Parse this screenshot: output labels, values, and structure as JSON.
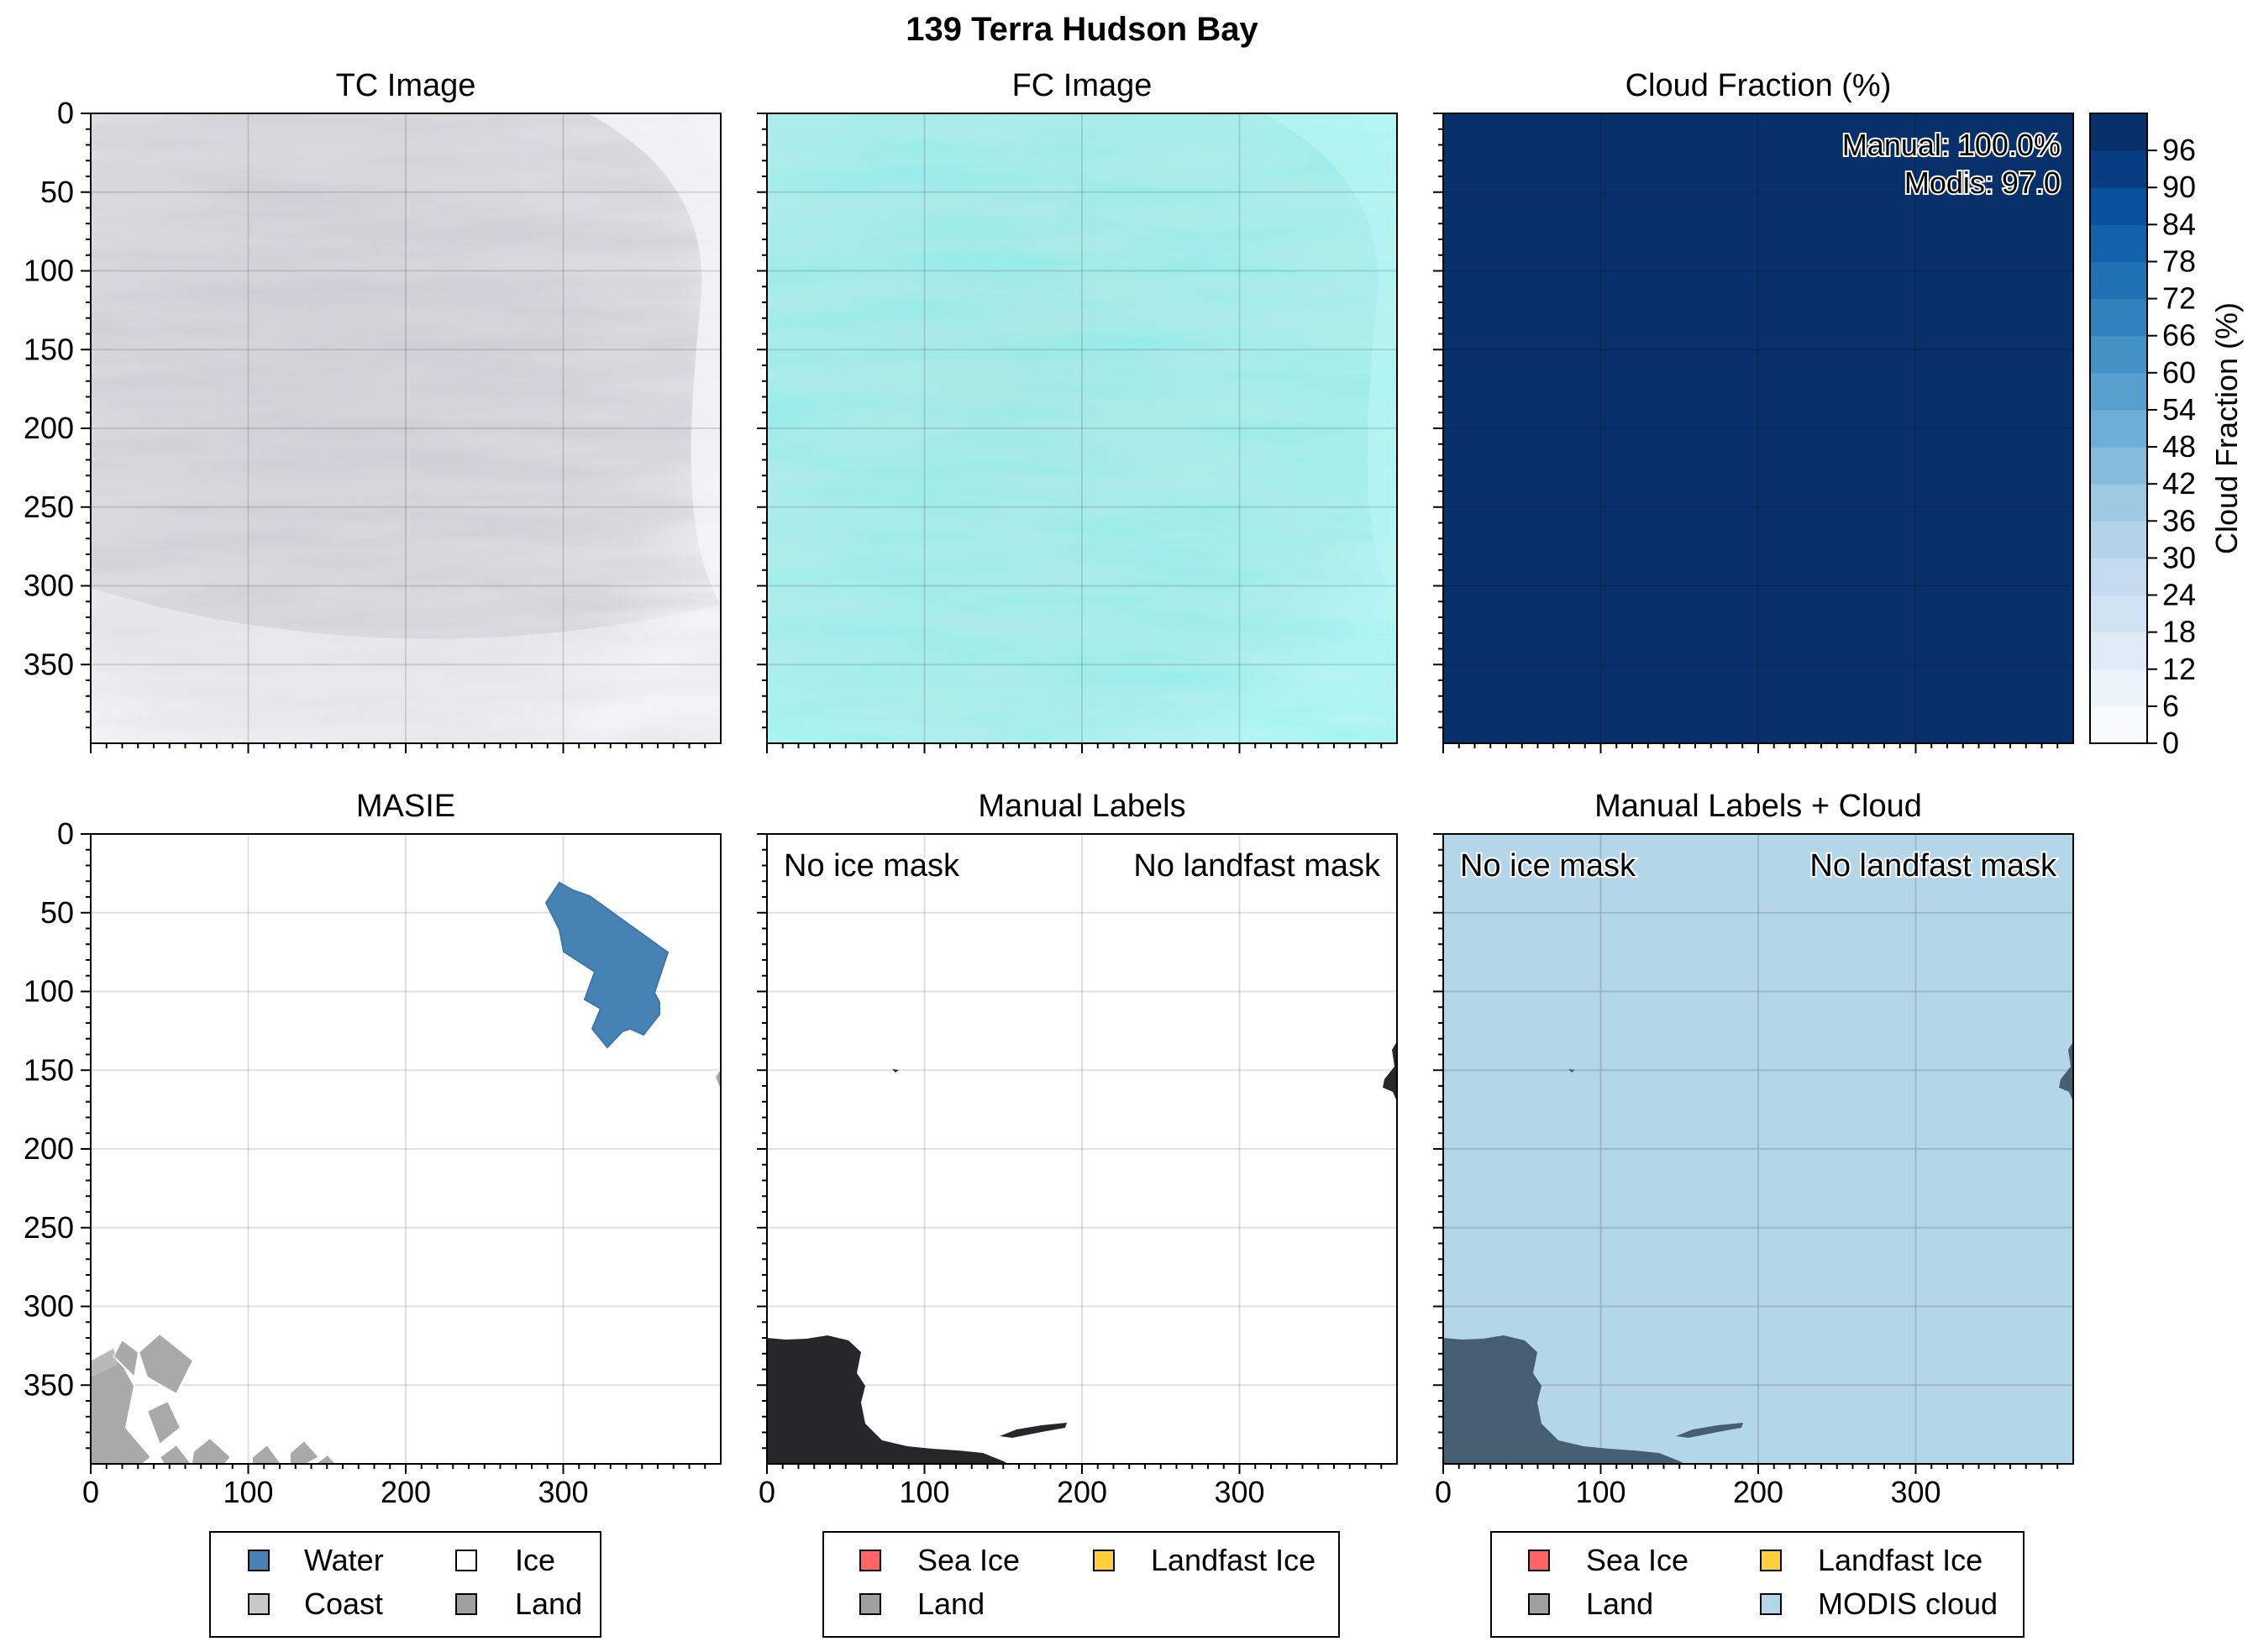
{
  "figure": {
    "title": "139 Terra Hudson Bay"
  },
  "axes_common": {
    "xlim": [
      0,
      400
    ],
    "ylim": [
      400,
      0
    ],
    "y_ticks": [
      0,
      50,
      100,
      150,
      200,
      250,
      300,
      350
    ],
    "x_ticks": [
      0,
      100,
      200,
      300
    ]
  },
  "colors": {
    "water": "#4682b4",
    "coast": "#c8c8c8",
    "ice": "#ffffff",
    "land": "#a0a0a0",
    "sea_ice": "#ff6464",
    "landfast_ice": "#ffd03a",
    "modis_cloud": "#b3d6e8",
    "land_dark": "#25272b",
    "land_dark_cloud": "#455e72",
    "cloud_fill": "#08306b",
    "fc_base": "#aff2ef",
    "tc_base": "#e9e8ee"
  },
  "chart_data": [
    {
      "id": "tc",
      "type": "image",
      "title": "TC Image",
      "description_values": {
        "texture": "cloud-covered scene, light grey"
      }
    },
    {
      "id": "fc",
      "type": "image",
      "title": "FC Image"
    },
    {
      "id": "cf",
      "type": "heatmap",
      "title": "Cloud Fraction (%)",
      "annotations": [
        "Manual: 100.0%",
        "Modis: 97.0"
      ],
      "uniform_value": 97.0,
      "colorbar": {
        "label": "Cloud Fraction (%)",
        "ticks": [
          0,
          6,
          12,
          18,
          24,
          30,
          36,
          42,
          48,
          54,
          60,
          66,
          72,
          78,
          84,
          90,
          96
        ],
        "colors": [
          "#f7fbff",
          "#ebf3fb",
          "#deebf7",
          "#d1e3f3",
          "#c6dbef",
          "#b3d3e8",
          "#9ecae1",
          "#85bcdc",
          "#6baed6",
          "#57a0ce",
          "#4292c6",
          "#3181bd",
          "#2171b5",
          "#1361a9",
          "#08519c",
          "#083e81",
          "#08306b"
        ]
      }
    },
    {
      "id": "masie",
      "type": "image",
      "title": "MASIE",
      "legend": [
        {
          "label": "Water",
          "key": "water"
        },
        {
          "label": "Ice",
          "key": "ice"
        },
        {
          "label": "Coast",
          "key": "coast"
        },
        {
          "label": "Land",
          "key": "land"
        }
      ]
    },
    {
      "id": "manual",
      "type": "image",
      "title": "Manual Labels",
      "annotations": [
        "No ice mask",
        "No landfast mask"
      ],
      "legend": [
        {
          "label": "Sea Ice",
          "key": "sea_ice"
        },
        {
          "label": "Landfast Ice",
          "key": "landfast_ice"
        },
        {
          "label": "Land",
          "key": "land"
        }
      ]
    },
    {
      "id": "manual_cloud",
      "type": "image",
      "title": "Manual Labels + Cloud",
      "annotations": [
        "No ice mask",
        "No landfast mask"
      ],
      "legend": [
        {
          "label": "Sea Ice",
          "key": "sea_ice"
        },
        {
          "label": "Landfast Ice",
          "key": "landfast_ice"
        },
        {
          "label": "Land",
          "key": "land"
        },
        {
          "label": "MODIS cloud",
          "key": "modis_cloud"
        }
      ]
    }
  ]
}
